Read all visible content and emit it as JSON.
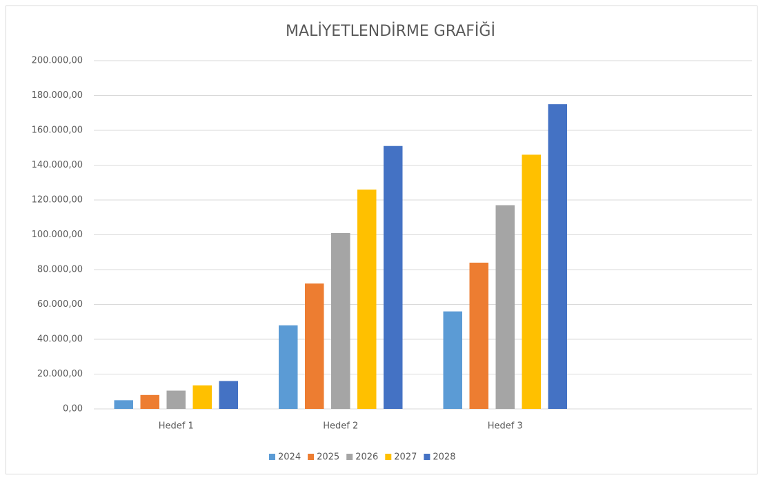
{
  "chart_data": {
    "type": "bar",
    "title": "MALİYETLENDİRME GRAFİĞİ",
    "categories": [
      "Hedef 1",
      "Hedef 2",
      "Hedef 3",
      null
    ],
    "series": [
      {
        "name": "2024",
        "color": "#5b9bd5",
        "values": [
          5000,
          48000,
          56000,
          null
        ]
      },
      {
        "name": "2025",
        "color": "#ed7d31",
        "values": [
          8000,
          72000,
          84000,
          null
        ]
      },
      {
        "name": "2026",
        "color": "#a5a5a5",
        "values": [
          10500,
          101000,
          117000,
          null
        ]
      },
      {
        "name": "2027",
        "color": "#ffc000",
        "values": [
          13500,
          126000,
          146000,
          null
        ]
      },
      {
        "name": "2028",
        "color": "#4472c4",
        "values": [
          16000,
          151000,
          175000,
          null
        ]
      }
    ],
    "ylim": [
      0,
      200000
    ],
    "yticks": [
      {
        "value": 0,
        "label": "0,00"
      },
      {
        "value": 20000,
        "label": "20.000,00"
      },
      {
        "value": 40000,
        "label": "40.000,00"
      },
      {
        "value": 60000,
        "label": "60.000,00"
      },
      {
        "value": 80000,
        "label": "80.000,00"
      },
      {
        "value": 100000,
        "label": "100.000,00"
      },
      {
        "value": 120000,
        "label": "120.000,00"
      },
      {
        "value": 140000,
        "label": "140.000,00"
      },
      {
        "value": 160000,
        "label": "160.000,00"
      },
      {
        "value": 180000,
        "label": "180.000,00"
      },
      {
        "value": 200000,
        "label": "200.000,00"
      }
    ],
    "grid": true,
    "legend": "bottom"
  }
}
